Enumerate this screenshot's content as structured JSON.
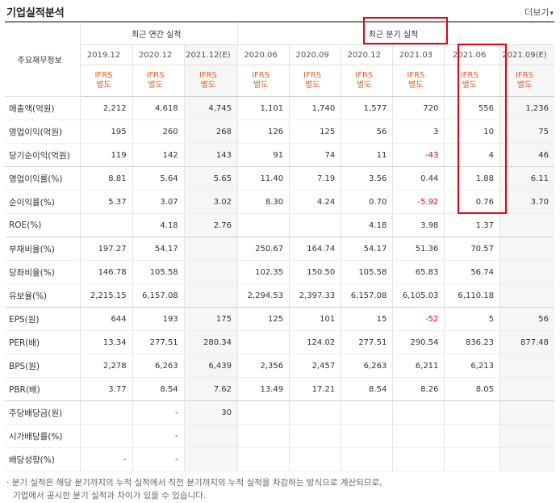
{
  "section": {
    "title": "기업실적분석",
    "more_label": "더보기",
    "more_icon": "chevron-down-icon"
  },
  "table": {
    "row_header": "주요재무정보",
    "group_annual": "최근 연간 실적",
    "group_quarter": "최근 분기 실적",
    "periods": [
      "2019.12",
      "2020.12",
      "2021.12(E)",
      "2020.06",
      "2020.09",
      "2020.12",
      "2021.03",
      "2021.06",
      "2021.09(E)"
    ],
    "standard_top": "IFRS",
    "standard_bottom": "별도",
    "rows": [
      {
        "label": "매출액(억원)",
        "values": [
          "2,212",
          "4,618",
          "4,745",
          "1,101",
          "1,740",
          "1,577",
          "720",
          "556",
          "1,236"
        ]
      },
      {
        "label": "영업이익(억원)",
        "values": [
          "195",
          "260",
          "268",
          "126",
          "125",
          "56",
          "3",
          "10",
          "75"
        ]
      },
      {
        "label": "당기순이익(억원)",
        "values": [
          "119",
          "142",
          "143",
          "91",
          "74",
          "11",
          "-43",
          "4",
          "46"
        ]
      },
      {
        "label": "영업이익률(%)",
        "values": [
          "8.81",
          "5.64",
          "5.65",
          "11.40",
          "7.19",
          "3.56",
          "0.44",
          "1.88",
          "6.11"
        ]
      },
      {
        "label": "순이익률(%)",
        "values": [
          "5.37",
          "3.07",
          "3.02",
          "8.30",
          "4.24",
          "0.70",
          "-5.92",
          "0.76",
          "3.70"
        ]
      },
      {
        "label": "ROE(%)",
        "values": [
          "",
          "4.18",
          "2.76",
          "",
          "",
          "4.18",
          "3.98",
          "1.37",
          ""
        ]
      },
      {
        "label": "부채비율(%)",
        "values": [
          "197.27",
          "54.17",
          "",
          "250.67",
          "164.74",
          "54.17",
          "51.36",
          "70.57",
          ""
        ]
      },
      {
        "label": "당좌비율(%)",
        "values": [
          "146.78",
          "105.58",
          "",
          "102.35",
          "150.50",
          "105.58",
          "65.83",
          "56.74",
          ""
        ]
      },
      {
        "label": "유보율(%)",
        "values": [
          "2,215.15",
          "6,157.08",
          "",
          "2,294.53",
          "2,397.33",
          "6,157.08",
          "6,105.03",
          "6,110.18",
          ""
        ]
      },
      {
        "label": "EPS(원)",
        "values": [
          "644",
          "193",
          "175",
          "125",
          "101",
          "15",
          "-52",
          "5",
          "56"
        ]
      },
      {
        "label": "PER(배)",
        "values": [
          "13.34",
          "277.51",
          "280.34",
          "",
          "124.02",
          "277.51",
          "290.54",
          "836.23",
          "877.48"
        ]
      },
      {
        "label": "BPS(원)",
        "values": [
          "2,278",
          "6,263",
          "6,439",
          "2,356",
          "2,457",
          "6,263",
          "6,211",
          "6,213",
          ""
        ]
      },
      {
        "label": "PBR(배)",
        "values": [
          "3.77",
          "8.54",
          "7.62",
          "13.49",
          "17.21",
          "8.54",
          "8.26",
          "8.05",
          ""
        ]
      },
      {
        "label": "주당배당금(원)",
        "values": [
          "",
          "-",
          "30",
          "",
          "",
          "",
          "",
          "",
          ""
        ]
      },
      {
        "label": "시가배당률(%)",
        "values": [
          "",
          "-",
          "",
          "",
          "",
          "",
          "",
          "",
          ""
        ]
      },
      {
        "label": "배당성향(%)",
        "values": [
          "-",
          "-",
          "",
          "",
          "",
          "",
          "",
          "",
          ""
        ]
      }
    ]
  },
  "notes": [
    "분기 실적은 해당 분기까지의 누적 실적에서 직전 분기까지의 누적 실적을 차감하는 방식으로 계산되므로,",
    "기업에서 공시한 분기 실적과 차이가 있을 수 있습니다."
  ],
  "colors": {
    "accent": "#e0622a",
    "negative": "#e60012",
    "highlight_border": "#e60012",
    "estimate_shade": "#f6f6f6"
  }
}
